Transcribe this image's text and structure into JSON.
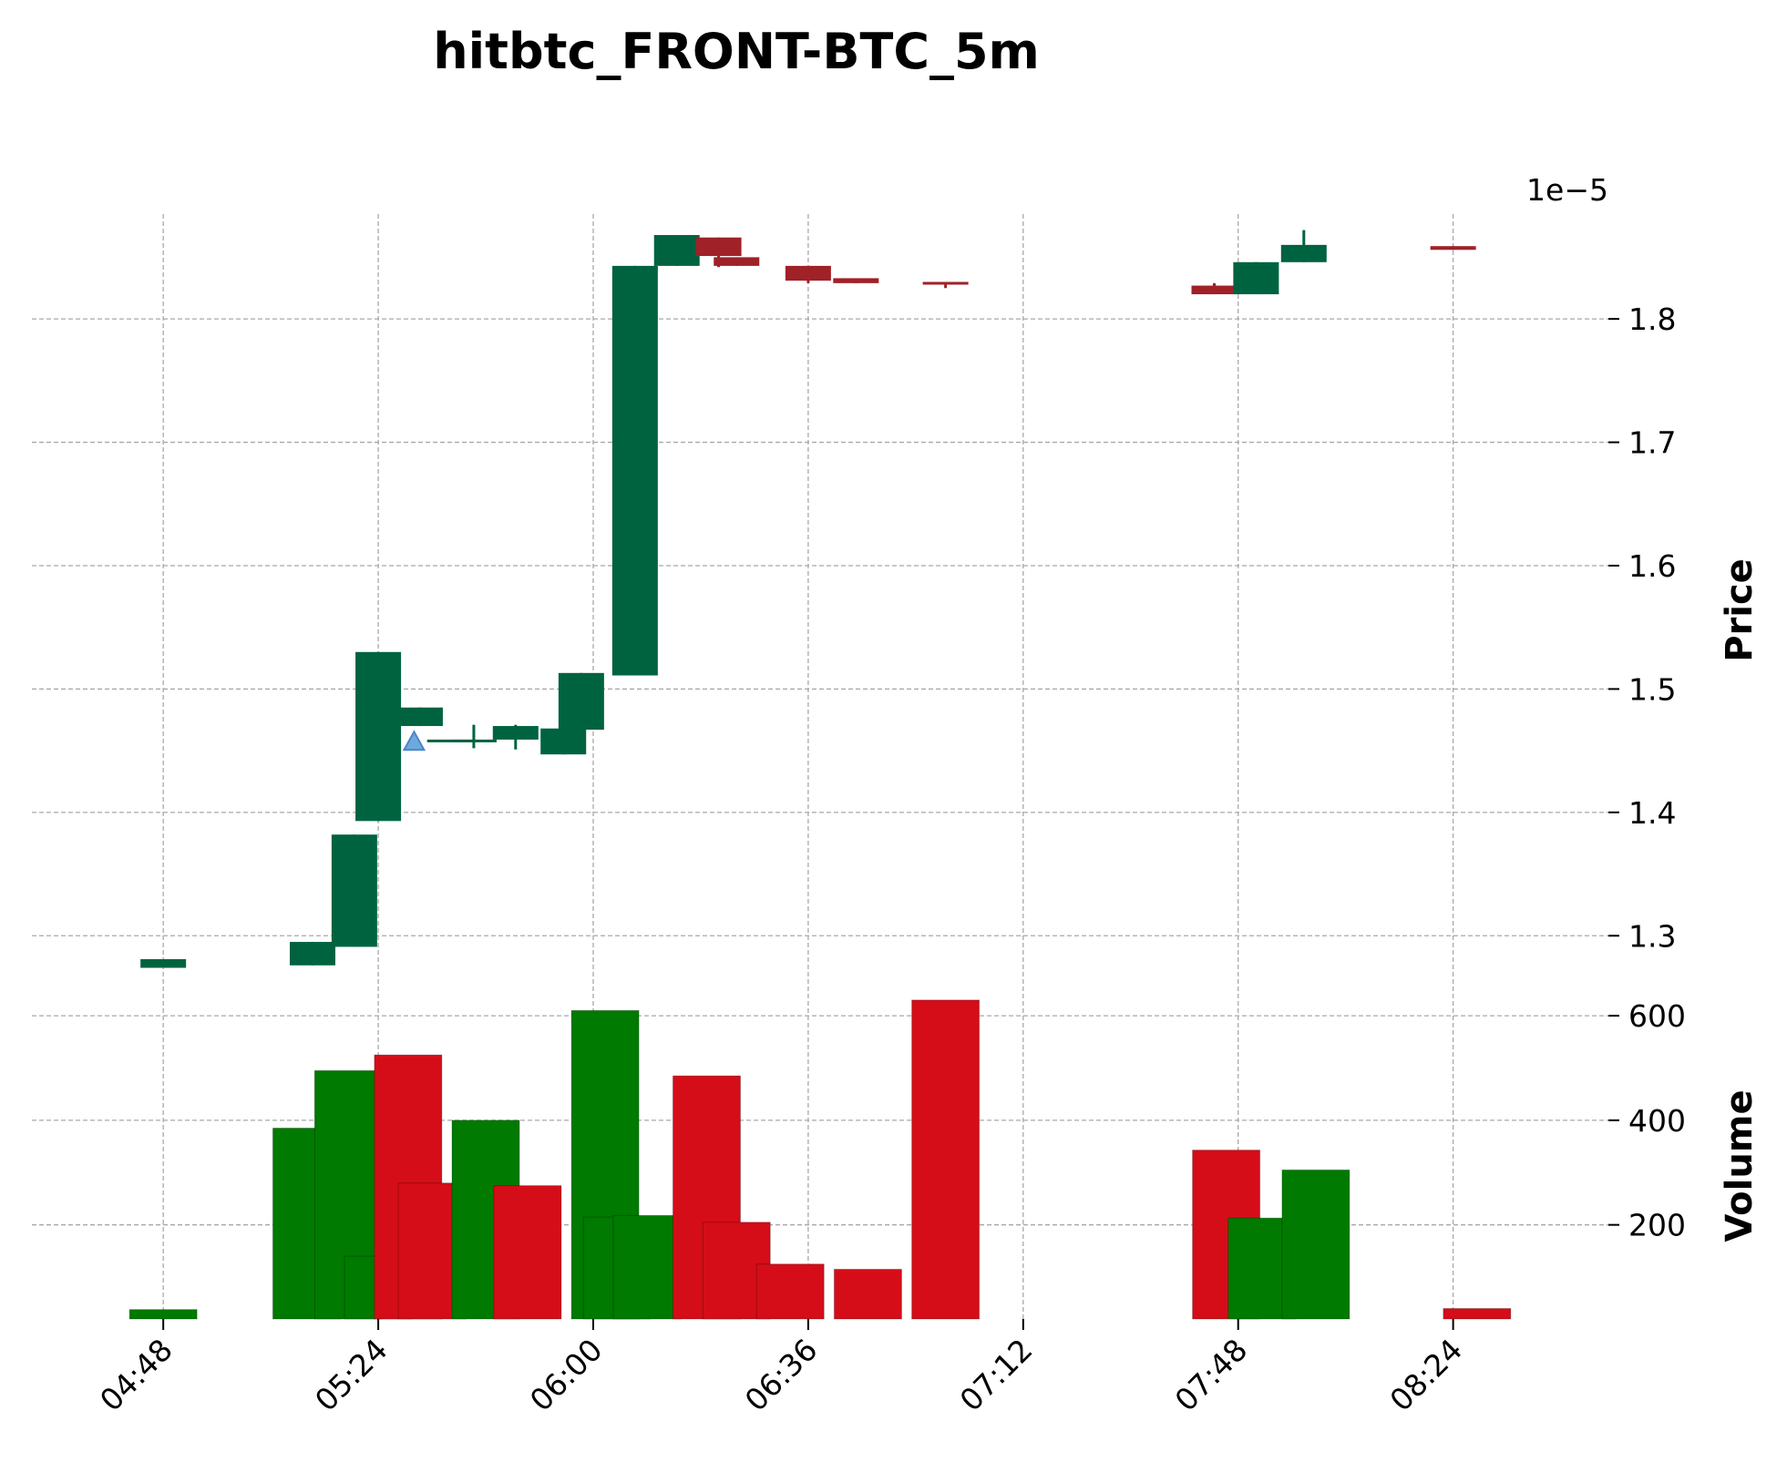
{
  "chart_data": {
    "type": "candlestick",
    "title": "hitbtc_FRONT-BTC_5m",
    "price_axis": {
      "label": "Price",
      "offset_text": "1e−5",
      "range": [
        1.25,
        1.885
      ],
      "ticks": [
        1.3,
        1.4,
        1.5,
        1.6,
        1.7,
        1.8
      ],
      "tick_labels": [
        "1.3",
        "1.4",
        "1.5",
        "1.6",
        "1.7",
        "1.8"
      ]
    },
    "volume_axis": {
      "label": "Volume",
      "range": [
        20,
        635
      ],
      "ticks": [
        200,
        400,
        600
      ],
      "tick_labels": [
        "200",
        "400",
        "600"
      ]
    },
    "time_axis": {
      "range": [
        "04:26",
        "08:50"
      ],
      "ticks": [
        "04:48",
        "05:24",
        "06:00",
        "06:36",
        "07:12",
        "07:48",
        "08:24"
      ],
      "tick_labels": [
        "04:48",
        "05:24",
        "06:00",
        "06:36",
        "07:12",
        "07:48",
        "08:24"
      ]
    },
    "grid": true,
    "colors": {
      "candle_up": "#006340",
      "candle_down": "#a02128",
      "volume_up": "#007a00",
      "volume_down": "#d50d18",
      "marker": "#6fa8dc"
    },
    "candles": [
      {
        "time": "04:48",
        "open": 1.274,
        "high": 1.281,
        "low": 1.274,
        "close": 1.281
      },
      {
        "time": "05:13",
        "open": 1.276,
        "high": 1.295,
        "low": 1.276,
        "close": 1.295
      },
      {
        "time": "05:20",
        "open": 1.291,
        "high": 1.382,
        "low": 1.291,
        "close": 1.382
      },
      {
        "time": "05:24",
        "open": 1.393,
        "high": 1.53,
        "low": 1.393,
        "close": 1.53
      },
      {
        "time": "05:31",
        "open": 1.47,
        "high": 1.485,
        "low": 1.47,
        "close": 1.485
      },
      {
        "time": "05:36",
        "open": 1.459,
        "high": 1.459,
        "low": 1.459,
        "close": 1.459
      },
      {
        "time": "05:40",
        "open": 1.459,
        "high": 1.471,
        "low": 1.452,
        "close": 1.459
      },
      {
        "time": "05:47",
        "open": 1.459,
        "high": 1.471,
        "low": 1.451,
        "close": 1.47
      },
      {
        "time": "05:55",
        "open": 1.447,
        "high": 1.468,
        "low": 1.447,
        "close": 1.468
      },
      {
        "time": "05:58",
        "open": 1.467,
        "high": 1.513,
        "low": 1.467,
        "close": 1.513
      },
      {
        "time": "06:07",
        "open": 1.511,
        "high": 1.843,
        "low": 1.511,
        "close": 1.843
      },
      {
        "time": "06:14",
        "open": 1.843,
        "high": 1.868,
        "low": 1.843,
        "close": 1.868
      },
      {
        "time": "06:21",
        "open": 1.866,
        "high": 1.866,
        "low": 1.842,
        "close": 1.851
      },
      {
        "time": "06:24",
        "open": 1.85,
        "high": 1.85,
        "low": 1.843,
        "close": 1.843
      },
      {
        "time": "06:36",
        "open": 1.843,
        "high": 1.843,
        "low": 1.829,
        "close": 1.831
      },
      {
        "time": "06:44",
        "open": 1.833,
        "high": 1.833,
        "low": 1.829,
        "close": 1.829
      },
      {
        "time": "06:59",
        "open": 1.83,
        "high": 1.83,
        "low": 1.825,
        "close": 1.828
      },
      {
        "time": "07:44",
        "open": 1.827,
        "high": 1.829,
        "low": 1.82,
        "close": 1.82
      },
      {
        "time": "07:51",
        "open": 1.82,
        "high": 1.846,
        "low": 1.82,
        "close": 1.846
      },
      {
        "time": "07:59",
        "open": 1.846,
        "high": 1.872,
        "low": 1.846,
        "close": 1.86
      },
      {
        "time": "08:24",
        "open": 1.859,
        "high": 1.859,
        "low": 1.856,
        "close": 1.856
      }
    ],
    "volume": [
      {
        "time": "04:48",
        "value": 38,
        "dir": "up"
      },
      {
        "time": "05:12",
        "value": 385,
        "dir": "up"
      },
      {
        "time": "05:19",
        "value": 495,
        "dir": "up"
      },
      {
        "time": "05:24",
        "value": 140,
        "dir": "up"
      },
      {
        "time": "05:29",
        "value": 525,
        "dir": "down"
      },
      {
        "time": "05:33",
        "value": 280,
        "dir": "down"
      },
      {
        "time": "05:42",
        "value": 400,
        "dir": "up"
      },
      {
        "time": "05:49",
        "value": 275,
        "dir": "down"
      },
      {
        "time": "06:02",
        "value": 610,
        "dir": "up"
      },
      {
        "time": "06:04",
        "value": 215,
        "dir": "up"
      },
      {
        "time": "06:09",
        "value": 218,
        "dir": "up"
      },
      {
        "time": "06:19",
        "value": 485,
        "dir": "down"
      },
      {
        "time": "06:24",
        "value": 205,
        "dir": "down"
      },
      {
        "time": "06:33",
        "value": 125,
        "dir": "down"
      },
      {
        "time": "06:46",
        "value": 115,
        "dir": "down"
      },
      {
        "time": "06:59",
        "value": 630,
        "dir": "down"
      },
      {
        "time": "07:46",
        "value": 343,
        "dir": "down"
      },
      {
        "time": "07:52",
        "value": 213,
        "dir": "up"
      },
      {
        "time": "08:01",
        "value": 305,
        "dir": "up"
      },
      {
        "time": "08:28",
        "value": 40,
        "dir": "down"
      }
    ],
    "markers": [
      {
        "time": "05:30",
        "price": 1.458,
        "shape": "triangle-up"
      }
    ]
  }
}
